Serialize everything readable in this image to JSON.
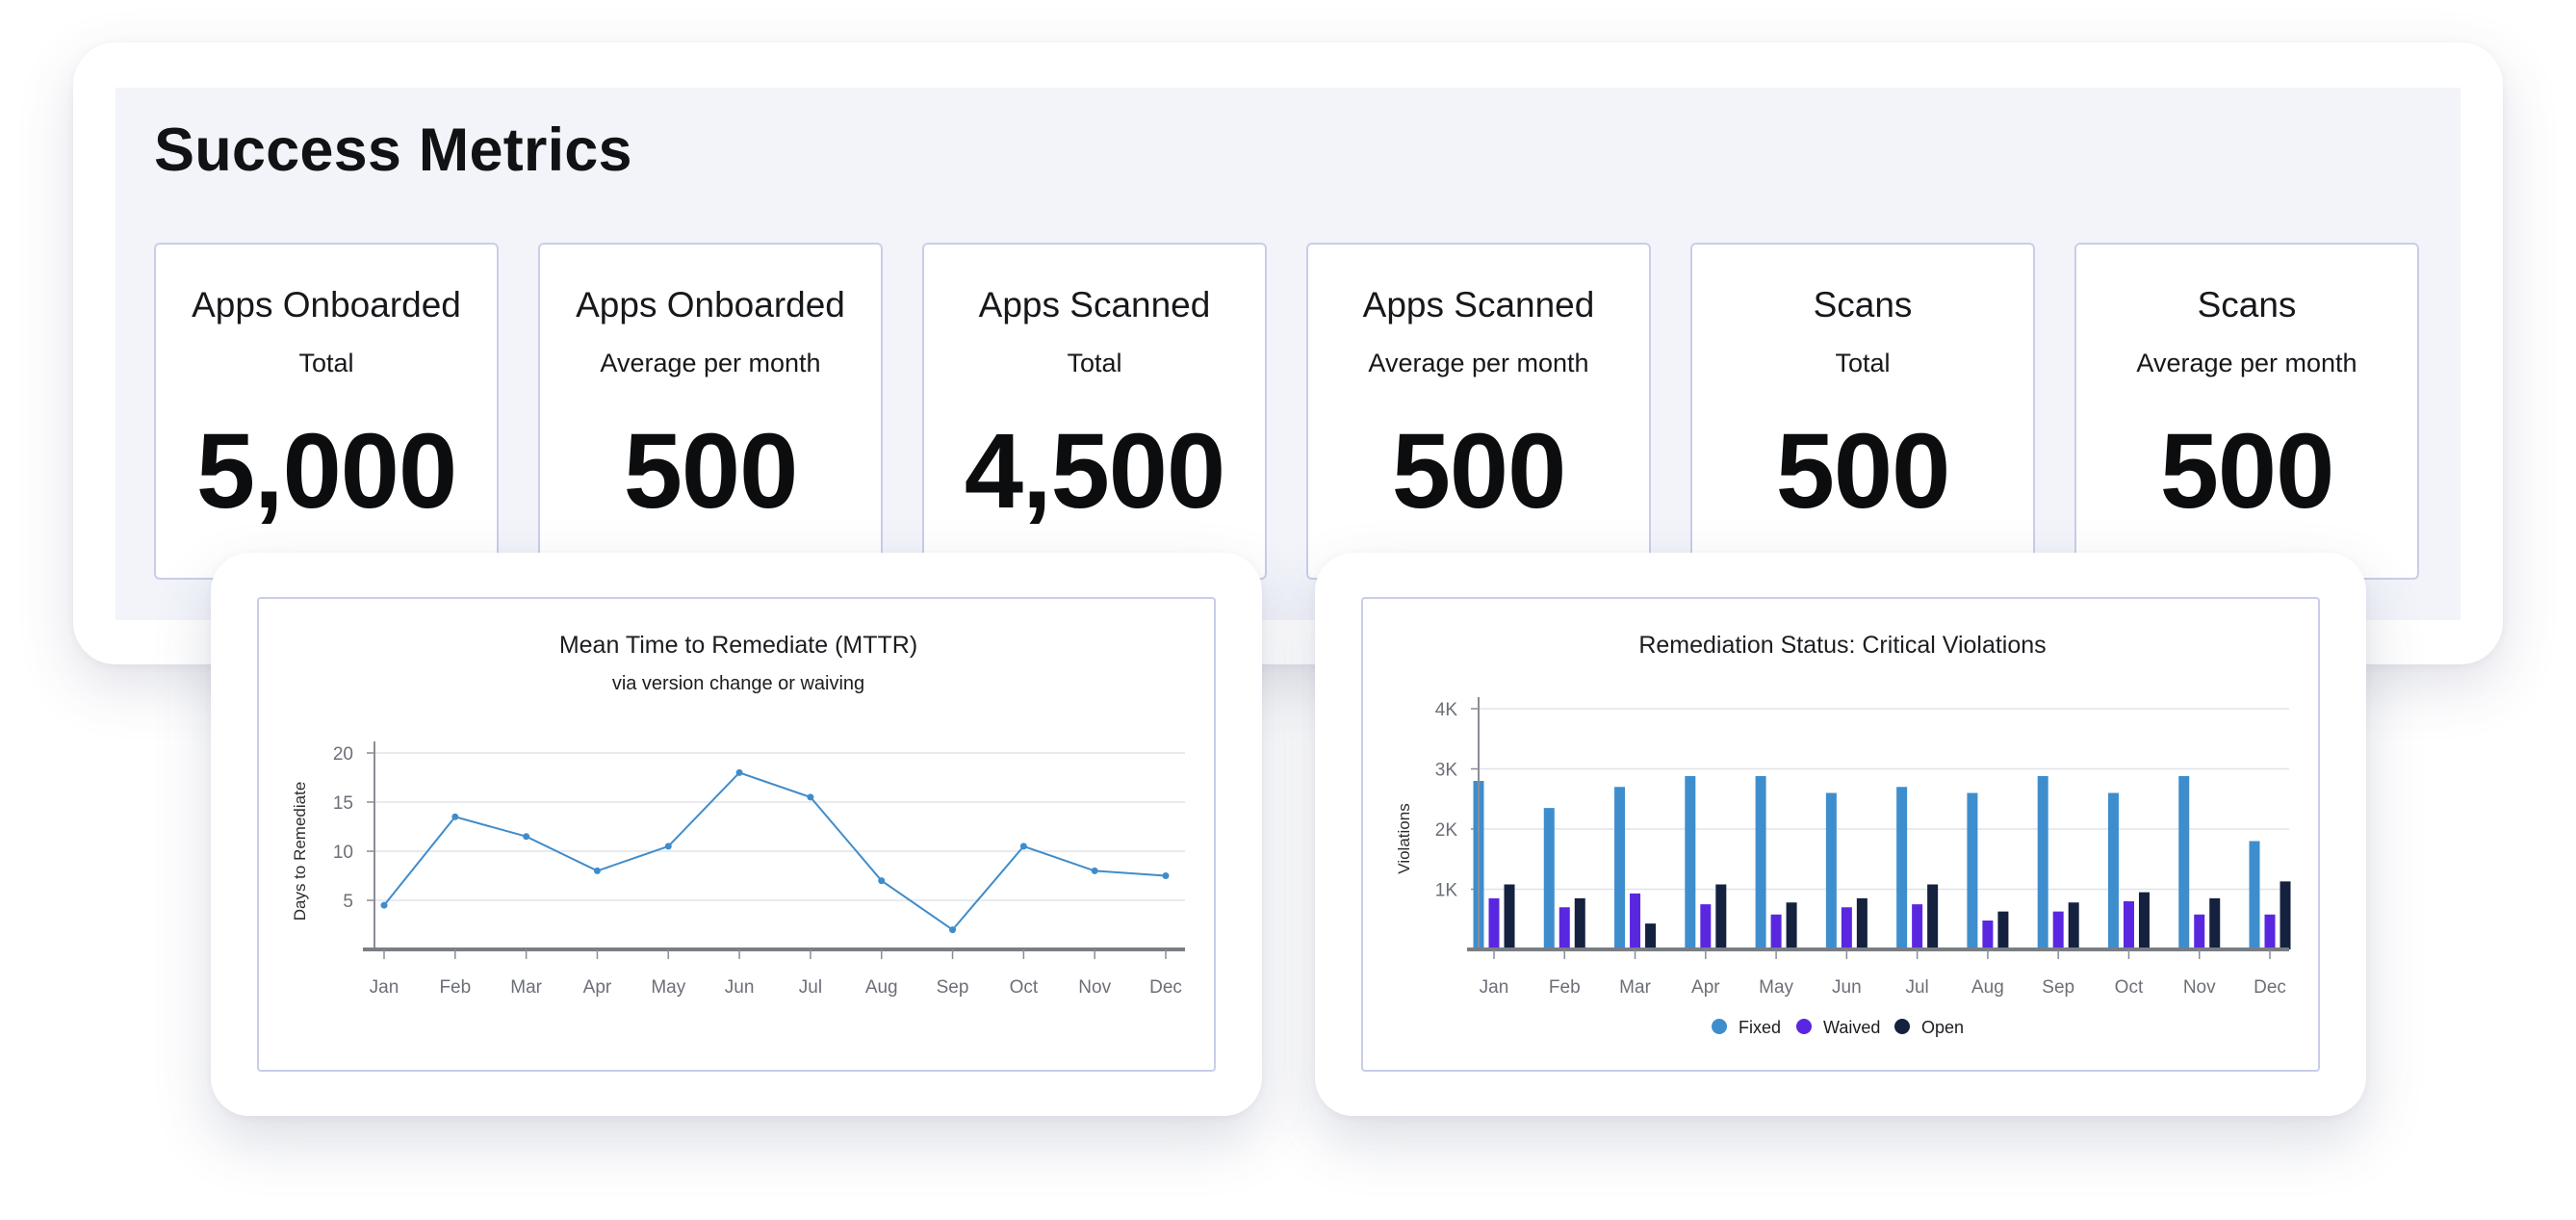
{
  "header": {
    "title": "Success Metrics"
  },
  "metrics": [
    {
      "title": "Apps Onboarded",
      "subtitle": "Total",
      "value": "5,000"
    },
    {
      "title": "Apps Onboarded",
      "subtitle": "Average per month",
      "value": "500"
    },
    {
      "title": "Apps Scanned",
      "subtitle": "Total",
      "value": "4,500"
    },
    {
      "title": "Apps Scanned",
      "subtitle": "Average per month",
      "value": "500"
    },
    {
      "title": "Scans",
      "subtitle": "Total",
      "value": "500"
    },
    {
      "title": "Scans",
      "subtitle": "Average per month",
      "value": "500"
    }
  ],
  "chart_data": [
    {
      "type": "line",
      "title": "Mean Time to Remediate (MTTR)",
      "subtitle": "via version change or waiving",
      "xlabel": "",
      "ylabel": "Days to Remediate",
      "categories": [
        "Jan",
        "Feb",
        "Mar",
        "Apr",
        "May",
        "Jun",
        "Jul",
        "Aug",
        "Sep",
        "Oct",
        "Nov",
        "Dec"
      ],
      "values": [
        4.5,
        13.5,
        11.5,
        8,
        10.5,
        18,
        15.5,
        7,
        2,
        10.5,
        8,
        7.5
      ],
      "ylim": [
        0,
        20
      ],
      "yticks": [
        5,
        10,
        15,
        20
      ],
      "grid": true,
      "color": "#3f8ccb"
    },
    {
      "type": "bar",
      "title": "Remediation Status: Critical Violations",
      "xlabel": "",
      "ylabel": "Violations",
      "categories": [
        "Jan",
        "Feb",
        "Mar",
        "Apr",
        "May",
        "Jun",
        "Jul",
        "Aug",
        "Sep",
        "Oct",
        "Nov",
        "Dec"
      ],
      "ylim": [
        0,
        4000
      ],
      "yticks": [
        1000,
        2000,
        3000,
        4000
      ],
      "ytick_labels": [
        "1K",
        "2K",
        "3K",
        "4K"
      ],
      "grid": true,
      "legend": "bottom-center",
      "series": [
        {
          "name": "Fixed",
          "color": "#3e8ecd",
          "values": [
            2800,
            2350,
            2700,
            2880,
            2880,
            2600,
            2700,
            2600,
            2880,
            2600,
            2880,
            1800
          ]
        },
        {
          "name": "Waived",
          "color": "#5a27e0",
          "values": [
            850,
            700,
            930,
            750,
            580,
            700,
            750,
            480,
            630,
            800,
            580,
            580
          ]
        },
        {
          "name": "Open",
          "color": "#14213f",
          "values": [
            1080,
            850,
            430,
            1080,
            780,
            850,
            1080,
            630,
            780,
            950,
            850,
            1130
          ]
        }
      ]
    }
  ]
}
